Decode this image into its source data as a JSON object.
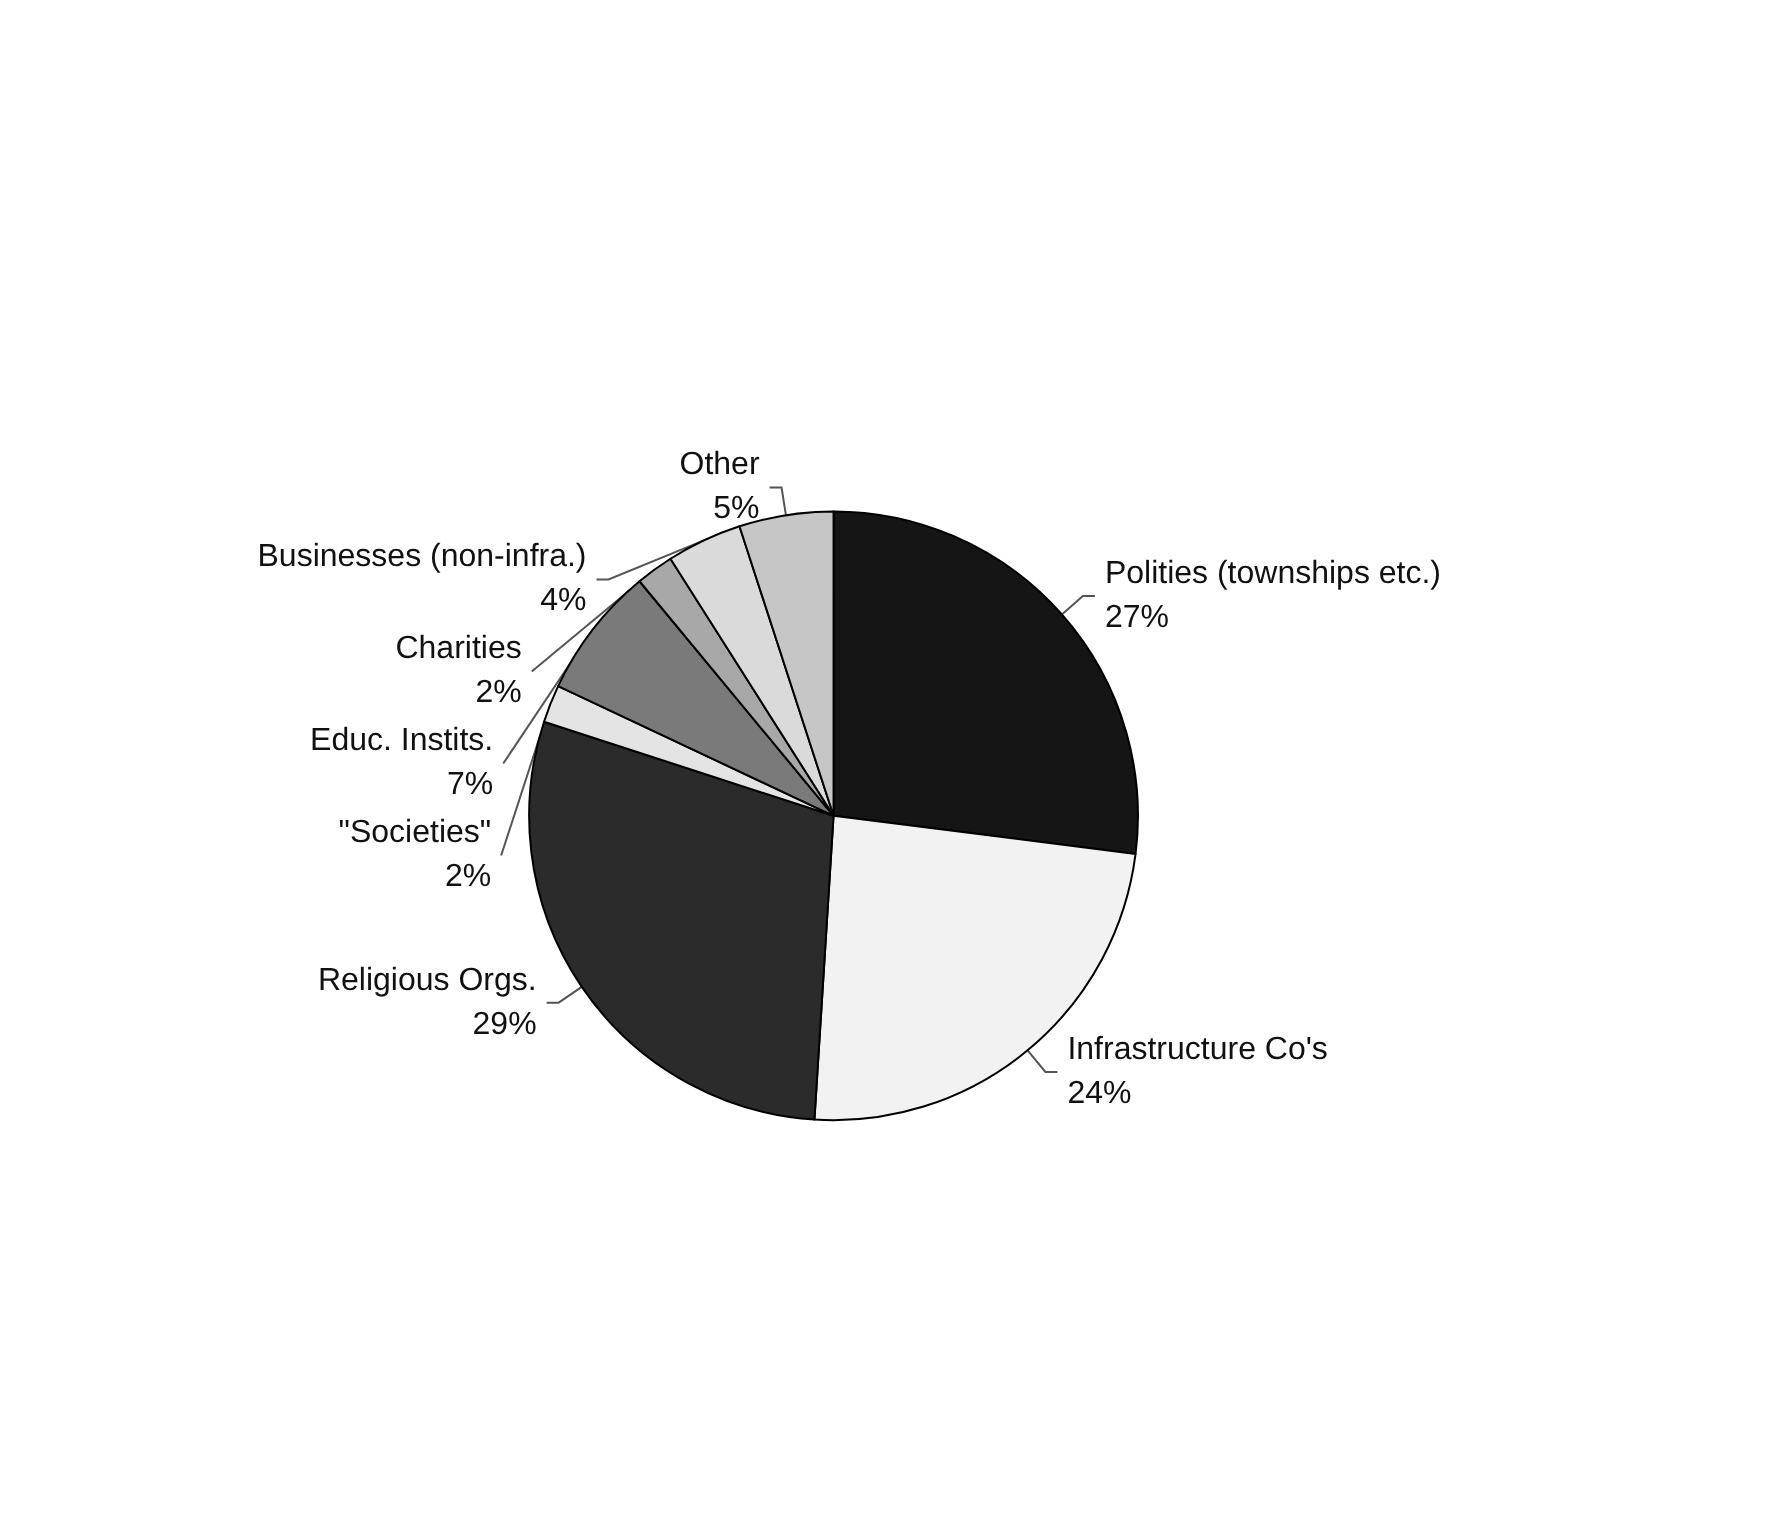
{
  "chart_data": {
    "type": "pie",
    "categories": [
      "Polities (townships etc.)",
      "Infrastructure Co's",
      "Religious Orgs.",
      "\"Societies\"",
      "Educ. Instits.",
      "Charities",
      "Businesses (non-infra.)",
      "Other"
    ],
    "values": [
      27,
      24,
      29,
      2,
      7,
      2,
      4,
      5
    ],
    "value_labels": [
      "27%",
      "24%",
      "29%",
      "2%",
      "7%",
      "2%",
      "4%",
      "5%"
    ],
    "colors": [
      "#151515",
      "#f2f2f2",
      "#2b2b2b",
      "#e4e4e4",
      "#7a7a7a",
      "#a8a8a8",
      "#dadada",
      "#c6c6c6"
    ],
    "legend": false
  }
}
